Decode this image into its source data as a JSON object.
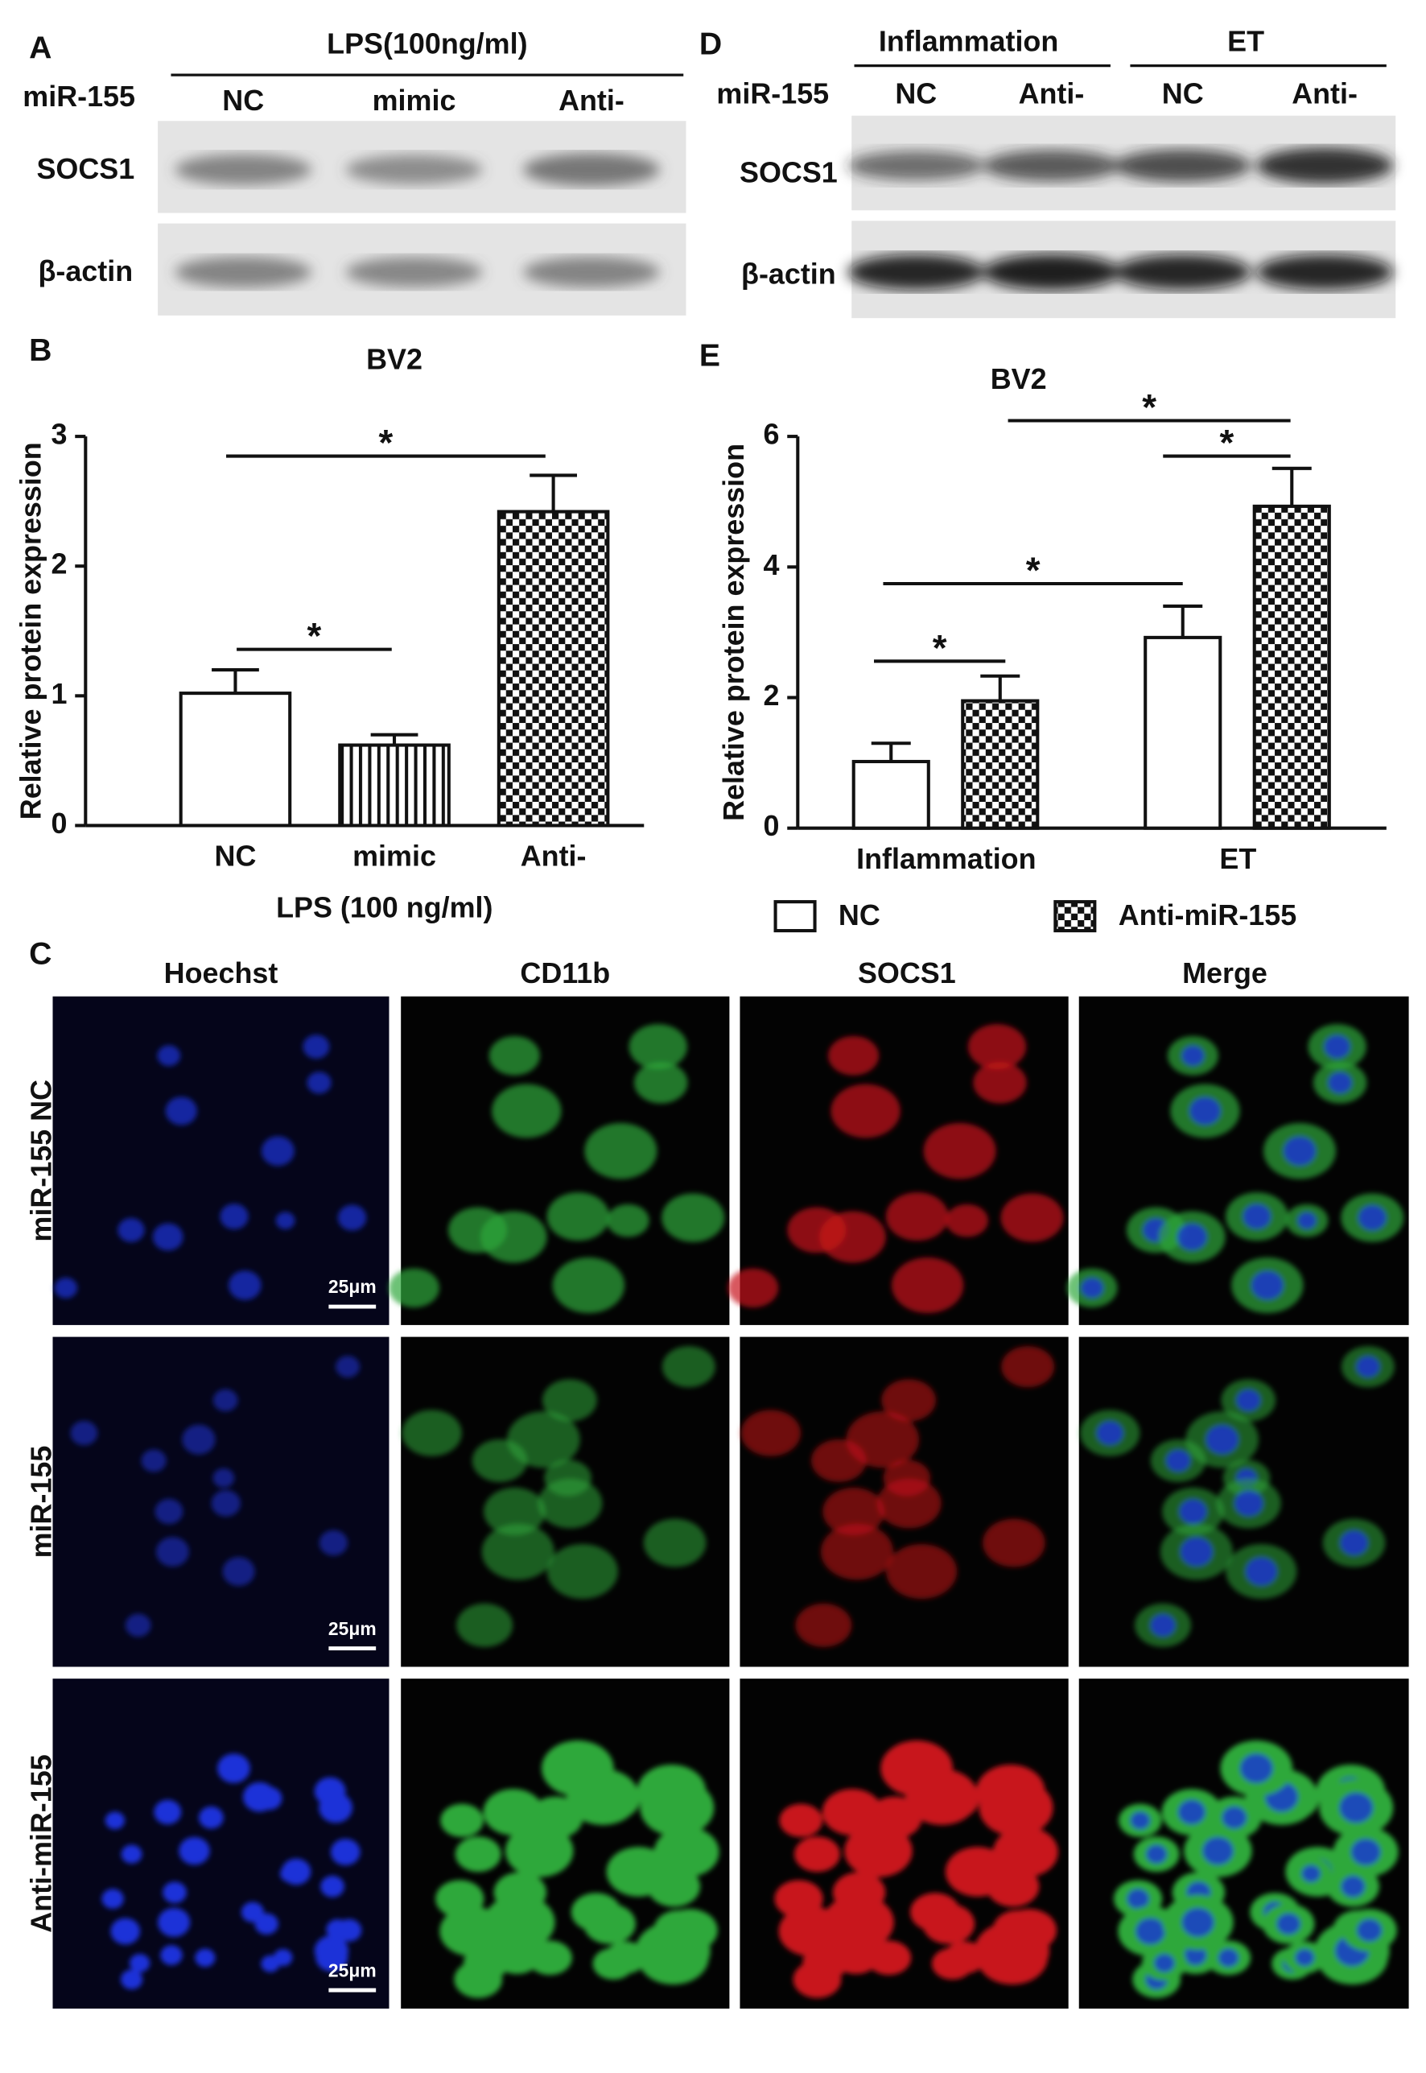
{
  "panel_labels": [
    "A",
    "B",
    "C",
    "D",
    "E"
  ],
  "blot_A": {
    "header": "LPS(100ng/ml)",
    "row_label": "miR-155",
    "lanes": [
      "NC",
      "mimic",
      "Anti-"
    ],
    "proteins": [
      "SOCS1",
      "β-actin"
    ]
  },
  "blot_D": {
    "groups": [
      "Inflammation",
      "ET"
    ],
    "row_label": "miR-155",
    "lanes": [
      "NC",
      "Anti-",
      "NC",
      "Anti-"
    ],
    "proteins": [
      "SOCS1",
      "β-actin"
    ]
  },
  "chart_data": [
    {
      "type": "bar",
      "title": "BV2",
      "y_label": "Relative protein expression",
      "x_label": "LPS (100 ng/ml)",
      "categories": [
        "NC",
        "mimic",
        "Anti-"
      ],
      "values": [
        1.02,
        0.62,
        2.42
      ],
      "errors": [
        0.18,
        0.08,
        0.28
      ],
      "patterns": [
        "none",
        "vertical-lines",
        "checker"
      ],
      "ylim": [
        0,
        3
      ],
      "yticks": [
        0,
        1,
        2,
        3
      ],
      "annotations": [
        "*",
        "*"
      ]
    },
    {
      "type": "bar",
      "title": "BV2",
      "y_label": "Relative protein expression",
      "categories": [
        "Inflammation",
        "ET"
      ],
      "series": [
        {
          "name": "NC",
          "pattern": "none",
          "values": [
            1.02,
            2.92
          ],
          "errors": [
            0.28,
            0.48
          ]
        },
        {
          "name": "Anti-miR-155",
          "pattern": "checker",
          "values": [
            1.95,
            4.93
          ],
          "errors": [
            0.38,
            0.58
          ]
        }
      ],
      "ylim": [
        0,
        6
      ],
      "yticks": [
        0,
        2,
        4,
        6
      ],
      "legend": "bottom",
      "annotations": [
        "*",
        "*",
        "*",
        "*"
      ]
    }
  ],
  "micrographs": {
    "columns": [
      "Hoechst",
      "CD11b",
      "SOCS1",
      "Merge"
    ],
    "rows": [
      "miR-155 NC",
      "miR-155",
      "Anti-miR-155"
    ],
    "scale_bars": [
      "25μm",
      "25μm",
      "25μm"
    ]
  }
}
